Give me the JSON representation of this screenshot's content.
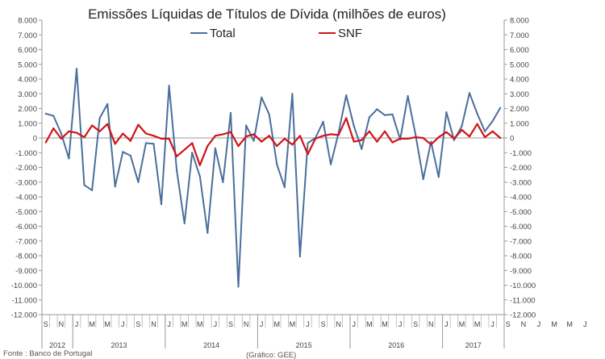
{
  "chart_data": {
    "type": "line",
    "title": "Emissões Líquidas de Títulos de Dívida (milhões de euros)",
    "xlabel": "",
    "ylabel": "",
    "ylim": [
      -12000,
      8000
    ],
    "y_ticks": [
      "8.000",
      "7.000",
      "6.000",
      "5.000",
      "4.000",
      "3.000",
      "2.000",
      "1.000",
      "0",
      "-1.000",
      "-2.000",
      "-3.000",
      "-4.000",
      "-5.000",
      "-6.000",
      "-7.000",
      "-8.000",
      "-9.000",
      "-10.000",
      "-11.000",
      "-12.000"
    ],
    "y_ticks_right": [
      "8.000",
      "7.000",
      "6.000",
      "5.000",
      "4.000",
      "3.000",
      "2.000",
      "1.000",
      "0",
      "-1.000",
      "-2.000",
      "-3.000",
      "-4.000",
      "-5.000",
      "-6.000",
      "-7.000",
      "-8.000",
      "-9.000",
      "-10.000",
      "-11.000",
      "-12.000"
    ],
    "legend_position": "top-center",
    "month_labels": [
      "S",
      "",
      "N",
      "",
      "J",
      "",
      "M",
      "",
      "M",
      "",
      "J",
      "",
      "S",
      "",
      "N",
      "",
      "J",
      "",
      "M",
      "",
      "M",
      "",
      "J",
      "",
      "S",
      "",
      "N",
      "",
      "J",
      "",
      "M",
      "",
      "M",
      "",
      "J",
      "",
      "S",
      "",
      "N",
      "",
      "J",
      "",
      "M",
      "",
      "M",
      "",
      "J",
      "",
      "S",
      "",
      "N",
      "",
      "J",
      "",
      "M",
      "",
      "M",
      "",
      "J",
      "",
      "S",
      "",
      "N",
      "",
      "J",
      "",
      "M",
      "",
      "M",
      "",
      "J",
      ""
    ],
    "years": [
      {
        "label": "2012",
        "start": 0,
        "count": 4
      },
      {
        "label": "2013",
        "start": 4,
        "count": 12
      },
      {
        "label": "2014",
        "start": 16,
        "count": 12
      },
      {
        "label": "2015",
        "start": 28,
        "count": 12
      },
      {
        "label": "2016",
        "start": 40,
        "count": 12
      },
      {
        "label": "2017",
        "start": 52,
        "count": 8
      }
    ],
    "series": [
      {
        "name": "Total",
        "color": "#4a6f9c",
        "values": [
          1650,
          1500,
          300,
          -1400,
          4700,
          -3200,
          -3550,
          1350,
          2300,
          -3300,
          -950,
          -1200,
          -3000,
          -350,
          -400,
          -4500,
          3550,
          -2200,
          -5800,
          -1000,
          -2600,
          -6450,
          -700,
          -3000,
          1700,
          -10100,
          850,
          -200,
          2750,
          1600,
          -1800,
          -3350,
          3000,
          -8050,
          -350,
          0,
          1100,
          -1800,
          350,
          2900,
          800,
          -750,
          1400,
          1950,
          1550,
          1600,
          -100,
          2850,
          200,
          -2800,
          -250,
          -2650,
          1750,
          -150,
          800,
          3050,
          1650,
          450,
          1150,
          2050
        ]
      },
      {
        "name": "SNF",
        "color": "#d01418",
        "values": [
          -300,
          650,
          -50,
          450,
          350,
          50,
          850,
          450,
          950,
          -400,
          300,
          -200,
          900,
          300,
          150,
          -50,
          -50,
          -1250,
          -800,
          -350,
          -1850,
          -550,
          150,
          250,
          400,
          -550,
          100,
          250,
          -250,
          150,
          -550,
          -50,
          -450,
          150,
          -1100,
          -50,
          150,
          250,
          200,
          1350,
          -250,
          -150,
          450,
          -250,
          450,
          -300,
          -50,
          -50,
          50,
          0,
          -450,
          50,
          400,
          -50,
          550,
          100,
          950,
          50,
          450,
          0
        ]
      }
    ]
  },
  "source": "Fonte : Banco de Portugal",
  "credit": "(Gráfico: GEE)"
}
